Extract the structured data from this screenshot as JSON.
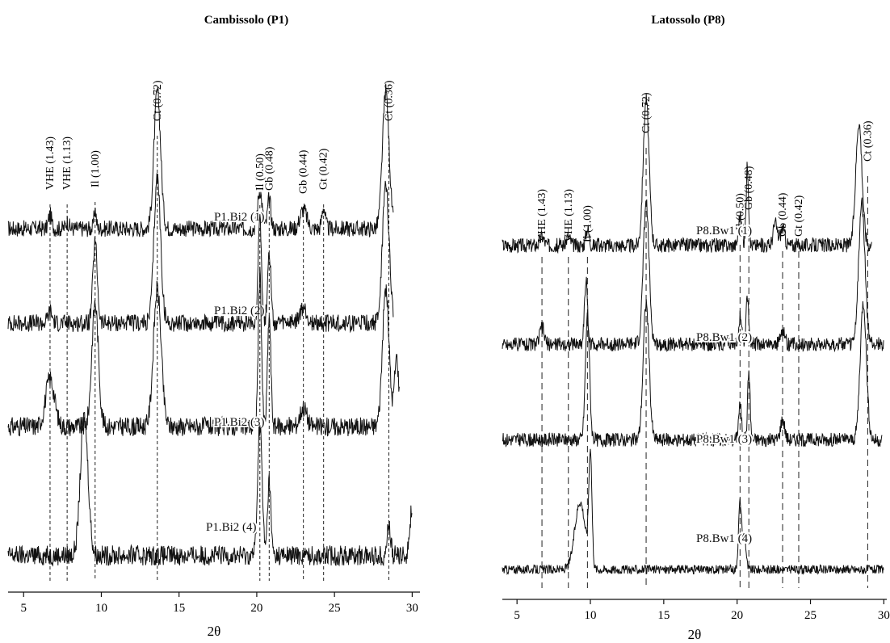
{
  "figure": {
    "xlabel": "2θ",
    "panels": [
      {
        "title": "Cambissolo (P1)",
        "traces": [
          "P1.Bi2 (1)",
          "P1.Bi2 (2)",
          "P1.Bi2 (3)",
          "P1.Bi2 (4)"
        ],
        "peaks": [
          "VHE (1.43)",
          "VHE (1.13)",
          "Il (1.00)",
          "Ct (0.72)",
          "Il (0.50)",
          "Gb (0.48)",
          "Gb (0.44)",
          "Gt (0.42)",
          "Ct (0.36)"
        ]
      },
      {
        "title": "Latossolo (P8)",
        "traces": [
          "P8.Bw1 (1)",
          "P8.Bw1 (2)",
          "P8.Bw1 (3)",
          "P8.Bw1 (4)"
        ],
        "peaks": [
          "VHE (1.43)",
          "VHE (1.13)",
          "Il (1.00)",
          "Ct (0.72)",
          "Il (0.50)",
          "Gb (0.48)",
          "Gb (0.44)",
          "Gt (0.42)",
          "Ct (0.36)"
        ]
      }
    ]
  },
  "chart_data": [
    {
      "type": "line",
      "title": "Cambissolo (P1)",
      "xlabel": "2θ",
      "ylabel": "",
      "xlim": [
        4,
        30.5
      ],
      "xticks": [
        5,
        10,
        15,
        20,
        25,
        30
      ],
      "peak_positions": [
        6.7,
        7.8,
        9.6,
        13.6,
        20.2,
        20.8,
        23.0,
        24.3,
        28.5
      ],
      "peak_labels": [
        "VHE (1.43)",
        "VHE (1.13)",
        "Il (1.00)",
        "Ct (0.72)",
        "Il (0.50)",
        "Gb (0.48)",
        "Gb (0.44)",
        "Gt (0.42)",
        "Ct (0.36)"
      ],
      "series": [
        {
          "name": "P1.Bi2 (1)",
          "x_range": [
            4,
            28.8
          ],
          "baseline": 0.1,
          "noise": 0.06,
          "peaks": [
            [
              6.7,
              0.1,
              0.15
            ],
            [
              7.8,
              0.05,
              0.15
            ],
            [
              9.6,
              0.14,
              0.1
            ],
            [
              13.6,
              1.0,
              0.3
            ],
            [
              20.2,
              0.28,
              0.2
            ],
            [
              20.8,
              0.22,
              0.15
            ],
            [
              23.0,
              0.14,
              0.3
            ],
            [
              24.3,
              0.16,
              0.15
            ],
            [
              28.3,
              1.0,
              0.3
            ]
          ]
        },
        {
          "name": "P1.Bi2 (2)",
          "x_range": [
            4,
            28.8
          ],
          "baseline": 0.1,
          "noise": 0.06,
          "peaks": [
            [
              6.7,
              0.08,
              0.2
            ],
            [
              9.6,
              0.55,
              0.2
            ],
            [
              13.6,
              1.0,
              0.3
            ],
            [
              20.2,
              0.75,
              0.15
            ],
            [
              20.8,
              0.5,
              0.15
            ],
            [
              23.0,
              0.1,
              0.3
            ],
            [
              28.3,
              0.95,
              0.3
            ]
          ]
        },
        {
          "name": "P1.Bi2 (3)",
          "x_range": [
            4,
            29.2
          ],
          "baseline": 0.1,
          "noise": 0.07,
          "peaks": [
            [
              6.7,
              0.35,
              0.4
            ],
            [
              9.6,
              0.9,
              0.3
            ],
            [
              13.6,
              1.0,
              0.35
            ],
            [
              20.2,
              1.1,
              0.15
            ],
            [
              20.8,
              0.8,
              0.15
            ],
            [
              23.0,
              0.14,
              0.3
            ],
            [
              28.3,
              1.0,
              0.3
            ],
            [
              29.0,
              0.5,
              0.2
            ]
          ]
        },
        {
          "name": "P1.Bi2 (4)",
          "x_range": [
            4,
            30
          ],
          "baseline": 0.08,
          "noise": 0.08,
          "peaks": [
            [
              8.9,
              1.1,
              0.35
            ],
            [
              20.2,
              1.05,
              0.2
            ],
            [
              20.8,
              0.6,
              0.15
            ],
            [
              28.5,
              0.25,
              0.15
            ],
            [
              30.0,
              0.4,
              0.2
            ]
          ]
        }
      ]
    },
    {
      "type": "line",
      "title": "Latossolo (P8)",
      "xlabel": "2θ",
      "ylabel": "",
      "xlim": [
        4,
        30.2
      ],
      "xticks": [
        5,
        10,
        15,
        20,
        25,
        30
      ],
      "peak_positions": [
        6.7,
        8.5,
        9.8,
        13.8,
        20.2,
        20.8,
        23.1,
        24.2,
        28.9
      ],
      "peak_labels": [
        "VHE (1.43)",
        "VHE (1.13)",
        "Il (1.00)",
        "Ct (0.72)",
        "Il (0.50)",
        "Gb (0.48)",
        "Gb (0.44)",
        "Gt (0.42)",
        "Ct (0.36)"
      ],
      "series": [
        {
          "name": "P8.Bw1 (1)",
          "x_range": [
            4,
            29.2
          ],
          "baseline": 0.08,
          "noise": 0.05,
          "peaks": [
            [
              6.7,
              0.06,
              0.2
            ],
            [
              8.5,
              0.06,
              0.2
            ],
            [
              9.8,
              0.12,
              0.15
            ],
            [
              13.8,
              1.0,
              0.28
            ],
            [
              20.2,
              0.2,
              0.15
            ],
            [
              20.7,
              0.55,
              0.12
            ],
            [
              22.6,
              0.15,
              0.2
            ],
            [
              23.1,
              0.12,
              0.2
            ],
            [
              28.3,
              0.85,
              0.3
            ]
          ]
        },
        {
          "name": "P8.Bw1 (2)",
          "x_range": [
            4,
            30
          ],
          "baseline": 0.08,
          "noise": 0.05,
          "peaks": [
            [
              6.7,
              0.12,
              0.2
            ],
            [
              9.7,
              0.45,
              0.15
            ],
            [
              13.8,
              1.0,
              0.28
            ],
            [
              20.2,
              0.2,
              0.15
            ],
            [
              20.7,
              0.35,
              0.12
            ],
            [
              23.1,
              0.1,
              0.2
            ],
            [
              28.5,
              1.0,
              0.3
            ]
          ]
        },
        {
          "name": "P8.Bw1 (3)",
          "x_range": [
            4,
            29.9
          ],
          "baseline": 0.08,
          "noise": 0.05,
          "peaks": [
            [
              9.8,
              0.9,
              0.2
            ],
            [
              13.8,
              1.0,
              0.28
            ],
            [
              20.2,
              0.25,
              0.15
            ],
            [
              20.8,
              0.5,
              0.12
            ],
            [
              23.1,
              0.15,
              0.2
            ],
            [
              28.6,
              1.0,
              0.3
            ]
          ]
        },
        {
          "name": "P8.Bw1 (4)",
          "x_range": [
            4,
            30
          ],
          "baseline": 0.05,
          "noise": 0.04,
          "peaks": [
            [
              9.3,
              0.6,
              0.5
            ],
            [
              10.0,
              1.0,
              0.15
            ],
            [
              20.2,
              0.6,
              0.15
            ],
            [
              20.5,
              0.3,
              0.15
            ]
          ]
        }
      ]
    }
  ]
}
